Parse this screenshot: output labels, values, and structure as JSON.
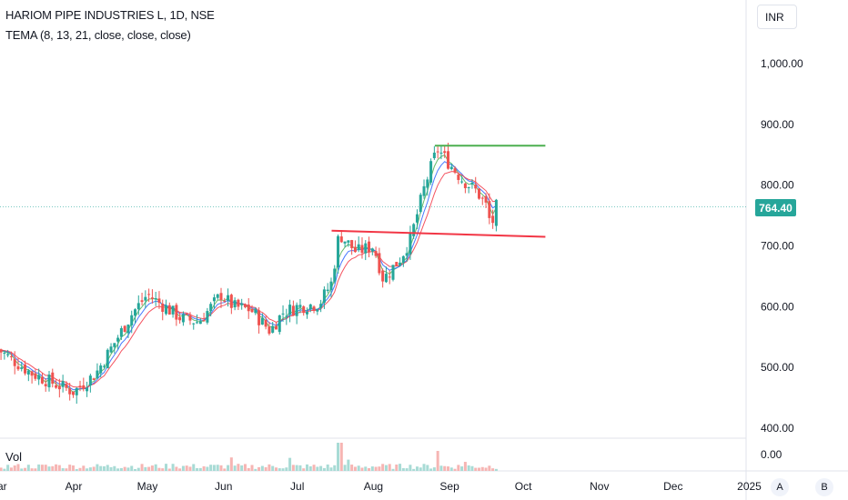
{
  "header": {
    "symbol_title": "HARIOM PIPE INDUSTRIES L, 1D, NSE",
    "indicator": "TEMA (8, 13, 21, close, close, close)",
    "currency": "INR"
  },
  "volume_pane": {
    "label": "Vol",
    "axis_value": "0.00"
  },
  "scale_buttons": {
    "auto": "A",
    "log": "B"
  },
  "last_price": "764.40",
  "colors": {
    "up": "#26a69a",
    "down": "#ef5350",
    "vol_up": "#a8dbd5",
    "vol_down": "#f6b5b3",
    "tema_fast": "#4caf50",
    "tema_mid": "#2962ff",
    "tema_slow": "#f23645",
    "resistance_line": "#4caf50",
    "support_line": "#f23645",
    "price_line": "#26a69a"
  },
  "chart_data": {
    "type": "candlestick",
    "y_axis": {
      "min": 400,
      "max": 1000,
      "ticks": [
        "1,000.00",
        "900.00",
        "800.00",
        "700.00",
        "600.00",
        "500.00",
        "400.00"
      ]
    },
    "x_axis": {
      "ticks": [
        "Mar",
        "Apr",
        "May",
        "Jun",
        "Jul",
        "Aug",
        "Sep",
        "Oct",
        "Nov",
        "Dec",
        "2025"
      ]
    },
    "trend_lines": [
      {
        "name": "resistance",
        "from": [
          "2024-08-26",
          865
        ],
        "to": [
          "2024-10-10",
          865
        ]
      },
      {
        "name": "support",
        "from": [
          "2024-07-15",
          725
        ],
        "to": [
          "2024-10-10",
          715
        ]
      }
    ],
    "closing_path": [
      [
        "2024-03-01",
        530
      ],
      [
        "2024-03-15",
        490
      ],
      [
        "2024-03-26",
        470
      ],
      [
        "2024-04-01",
        460
      ],
      [
        "2024-04-10",
        490
      ],
      [
        "2024-04-25",
        590
      ],
      [
        "2024-05-01",
        620
      ],
      [
        "2024-05-08",
        600
      ],
      [
        "2024-05-15",
        580
      ],
      [
        "2024-05-22",
        575
      ],
      [
        "2024-05-31",
        620
      ],
      [
        "2024-06-05",
        600
      ],
      [
        "2024-06-12",
        595
      ],
      [
        "2024-06-20",
        560
      ],
      [
        "2024-06-25",
        590
      ],
      [
        "2024-07-01",
        600
      ],
      [
        "2024-07-10",
        605
      ],
      [
        "2024-07-15",
        640
      ],
      [
        "2024-07-18",
        720
      ],
      [
        "2024-07-25",
        690
      ],
      [
        "2024-08-01",
        700
      ],
      [
        "2024-08-05",
        645
      ],
      [
        "2024-08-12",
        680
      ],
      [
        "2024-08-16",
        710
      ],
      [
        "2024-08-22",
        800
      ],
      [
        "2024-08-27",
        860
      ],
      [
        "2024-09-02",
        830
      ],
      [
        "2024-09-06",
        810
      ],
      [
        "2024-09-12",
        790
      ],
      [
        "2024-09-16",
        765
      ],
      [
        "2024-09-18",
        730
      ],
      [
        "2024-09-20",
        764.4
      ]
    ]
  }
}
